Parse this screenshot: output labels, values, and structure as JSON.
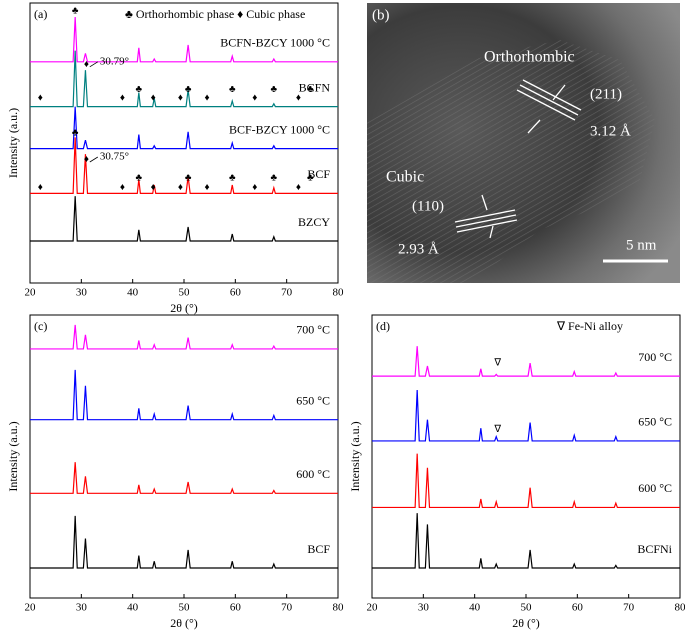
{
  "chart_data": [
    {
      "type": "line",
      "label": "(a)",
      "legend_text": "♣ Orthorhombic phase  ♦ Cubic phase",
      "x_label": "2θ (°)",
      "y_label": "Intensity (a.u.)",
      "xlim": [
        20,
        80
      ],
      "xticks": [
        20,
        30,
        40,
        50,
        60,
        70,
        80
      ],
      "ylim": [
        0,
        100
      ],
      "x": [
        20,
        28.4,
        28.8,
        29.2,
        30.4,
        30.8,
        31.2,
        40.9,
        41.2,
        41.5,
        43.9,
        44.2,
        44.5,
        50.4,
        50.8,
        51.2,
        59.1,
        59.4,
        59.7,
        67.2,
        67.5,
        67.8,
        80
      ],
      "series": [
        {
          "name": "BZCY",
          "color": "#000000",
          "values": [
            15,
            15,
            31,
            15,
            15,
            15,
            15,
            15,
            19,
            15,
            15,
            15,
            15,
            15,
            20,
            15,
            15,
            17.5,
            15,
            15,
            16.5,
            15,
            15
          ]
        },
        {
          "name": "BCF",
          "color": "#ff0000",
          "values": [
            32,
            32,
            52,
            32,
            32,
            46,
            32,
            32,
            37,
            32,
            32,
            35,
            32,
            32,
            38,
            32,
            32,
            35,
            32,
            32,
            34,
            32,
            32
          ]
        },
        {
          "name": "BCF-BZCY 1000 °C",
          "color": "#0000ff",
          "values": [
            48,
            48,
            63,
            48,
            48,
            51,
            48,
            48,
            53,
            48,
            48,
            49,
            48,
            48,
            54,
            48,
            48,
            50,
            48,
            48,
            49,
            48,
            48
          ]
        },
        {
          "name": "BCFN",
          "color": "#008080",
          "values": [
            63,
            63,
            83,
            63,
            63,
            76,
            63,
            63,
            68,
            63,
            63,
            66,
            63,
            63,
            69,
            63,
            63,
            65,
            63,
            63,
            64,
            63,
            63
          ]
        },
        {
          "name": "BCFN-BZCY 1000 °C",
          "color": "#ff00ff",
          "values": [
            79,
            79,
            95,
            79,
            79,
            82,
            79,
            79,
            84,
            79,
            79,
            80,
            79,
            79,
            85,
            79,
            79,
            81,
            79,
            79,
            80,
            79,
            79
          ]
        }
      ],
      "markers": [
        {
          "symbol": "♦",
          "x": 22,
          "y": 66
        },
        {
          "symbol": "♦",
          "x": 38,
          "y": 66
        },
        {
          "symbol": "♣",
          "x": 41.2,
          "y": 69
        },
        {
          "symbol": "♦",
          "x": 44,
          "y": 66
        },
        {
          "symbol": "♦",
          "x": 49.3,
          "y": 66
        },
        {
          "symbol": "♣",
          "x": 50.8,
          "y": 69
        },
        {
          "symbol": "♦",
          "x": 54.5,
          "y": 66
        },
        {
          "symbol": "♣",
          "x": 59.4,
          "y": 69
        },
        {
          "symbol": "♦",
          "x": 63.8,
          "y": 66
        },
        {
          "symbol": "♣",
          "x": 67.5,
          "y": 69
        },
        {
          "symbol": "♦",
          "x": 72.3,
          "y": 66
        },
        {
          "symbol": "♣",
          "x": 74.6,
          "y": 69
        },
        {
          "symbol": "♦",
          "x": 22,
          "y": 34
        },
        {
          "symbol": "♦",
          "x": 38,
          "y": 34
        },
        {
          "symbol": "♣",
          "x": 41.2,
          "y": 37.5
        },
        {
          "symbol": "♦",
          "x": 44,
          "y": 34
        },
        {
          "symbol": "♦",
          "x": 49.3,
          "y": 34
        },
        {
          "symbol": "♣",
          "x": 50.8,
          "y": 37.5
        },
        {
          "symbol": "♦",
          "x": 54.5,
          "y": 34
        },
        {
          "symbol": "♣",
          "x": 59.4,
          "y": 37.5
        },
        {
          "symbol": "♦",
          "x": 63.8,
          "y": 34
        },
        {
          "symbol": "♣",
          "x": 67.5,
          "y": 37.5
        },
        {
          "symbol": "♦",
          "x": 72.3,
          "y": 34
        },
        {
          "symbol": "♣",
          "x": 74.6,
          "y": 37.5
        },
        {
          "symbol": "♣",
          "x": 28.8,
          "y": 97
        },
        {
          "symbol": "♣",
          "x": 28.8,
          "y": 53.5
        },
        {
          "symbol": "♦",
          "x": 31,
          "y": 78
        },
        {
          "symbol": "♦",
          "x": 31,
          "y": 44
        }
      ],
      "annotations": [
        {
          "text": "30.79°",
          "x": 33.6,
          "y": 79
        },
        {
          "text": "30.75°",
          "x": 33.6,
          "y": 45
        }
      ]
    },
    {
      "type": "line",
      "label": "(c)",
      "x_label": "2θ (°)",
      "y_label": "Intensity (a.u.)",
      "xlim": [
        20,
        80
      ],
      "xticks": [
        20,
        30,
        40,
        50,
        60,
        70,
        80
      ],
      "ylim": [
        0,
        100
      ],
      "x": [
        20,
        28.4,
        28.8,
        29.2,
        30.4,
        30.8,
        31.2,
        40.9,
        41.2,
        41.5,
        43.9,
        44.2,
        44.5,
        50.4,
        50.8,
        51.2,
        59.1,
        59.4,
        59.7,
        67.2,
        67.5,
        67.8,
        80
      ],
      "series": [
        {
          "name": "BCF",
          "color": "#000000",
          "values": [
            10.6,
            10.6,
            29,
            10.6,
            10.6,
            21,
            10.6,
            10.6,
            15,
            10.6,
            10.6,
            13,
            10.6,
            10.6,
            17,
            10.6,
            10.6,
            13,
            10.6,
            10.6,
            12,
            10.6,
            10.6
          ]
        },
        {
          "name": "600 °C",
          "color": "#ff0000",
          "values": [
            37,
            37,
            48,
            37,
            37,
            43,
            37,
            37,
            40,
            37,
            37,
            38.5,
            37,
            37,
            41,
            37,
            37,
            38.5,
            37,
            37,
            38,
            37,
            37
          ]
        },
        {
          "name": "650 °C",
          "color": "#0000ff",
          "values": [
            63,
            63,
            80.6,
            63,
            63,
            75,
            63,
            63,
            67,
            63,
            63,
            65,
            63,
            63,
            68,
            63,
            63,
            65,
            63,
            63,
            64.5,
            63,
            63
          ]
        },
        {
          "name": "700 °C",
          "color": "#ff00ff",
          "values": [
            88,
            88,
            96.5,
            88,
            88,
            93,
            88,
            88,
            91,
            88,
            88,
            89.5,
            88,
            88,
            92,
            88,
            88,
            89.5,
            88,
            88,
            89,
            88,
            88
          ]
        }
      ]
    },
    {
      "type": "line",
      "label": "(d)",
      "legend_text": "∇ Fe-Ni alloy",
      "x_label": "2θ (°)",
      "y_label": "Intensity (a.u.)",
      "xlim": [
        20,
        80
      ],
      "xticks": [
        20,
        30,
        40,
        50,
        60,
        70,
        80
      ],
      "ylim": [
        0,
        100
      ],
      "x": [
        20,
        28.4,
        28.8,
        29.2,
        30.4,
        30.8,
        31.2,
        40.9,
        41.2,
        41.5,
        43.9,
        44.2,
        44.5,
        50.4,
        50.8,
        51.2,
        59.1,
        59.4,
        59.7,
        67.2,
        67.5,
        67.8,
        80
      ],
      "series": [
        {
          "name": "BCFNi",
          "color": "#000000",
          "values": [
            10.6,
            10.6,
            30,
            10.6,
            10.6,
            26,
            10.6,
            10.6,
            14,
            10.6,
            10.6,
            12,
            10.6,
            10.6,
            17,
            10.6,
            10.6,
            12,
            10.6,
            10.6,
            11.5,
            10.6,
            10.6
          ]
        },
        {
          "name": "600 °C",
          "color": "#ff0000",
          "values": [
            32,
            32,
            51,
            32,
            32,
            46,
            32,
            32,
            35,
            32,
            32,
            34,
            32,
            32,
            39,
            32,
            32,
            34,
            32,
            32,
            33.5,
            32,
            32
          ]
        },
        {
          "name": "650 °C",
          "color": "#0000ff",
          "values": [
            55.5,
            55.5,
            73.5,
            55.5,
            55.5,
            63,
            55.5,
            55.5,
            60,
            55.5,
            55.5,
            57,
            55.5,
            55.5,
            62,
            55.5,
            55.5,
            57.5,
            55.5,
            55.5,
            57,
            55.5,
            55.5
          ]
        },
        {
          "name": "700 °C",
          "color": "#ff00ff",
          "values": [
            78.4,
            78.4,
            89,
            78.4,
            78.4,
            82,
            78.4,
            78.4,
            81,
            78.4,
            78.4,
            79,
            78.4,
            78.4,
            83,
            78.4,
            78.4,
            80,
            78.4,
            78.4,
            79.5,
            78.4,
            78.4
          ]
        }
      ],
      "markers": [
        {
          "symbol": "∇",
          "x": 44.5,
          "y": 83
        },
        {
          "symbol": "∇",
          "x": 44.5,
          "y": 59.5
        }
      ]
    }
  ],
  "image_panel": {
    "label": "(b)",
    "orthorhombic": "Orthorhombic",
    "plane_211": "(211)",
    "spacing_211": "3.12 Å",
    "cubic": "Cubic",
    "plane_110": "(110)",
    "spacing_110": "2.93 Å",
    "scale_bar": "5 nm"
  }
}
